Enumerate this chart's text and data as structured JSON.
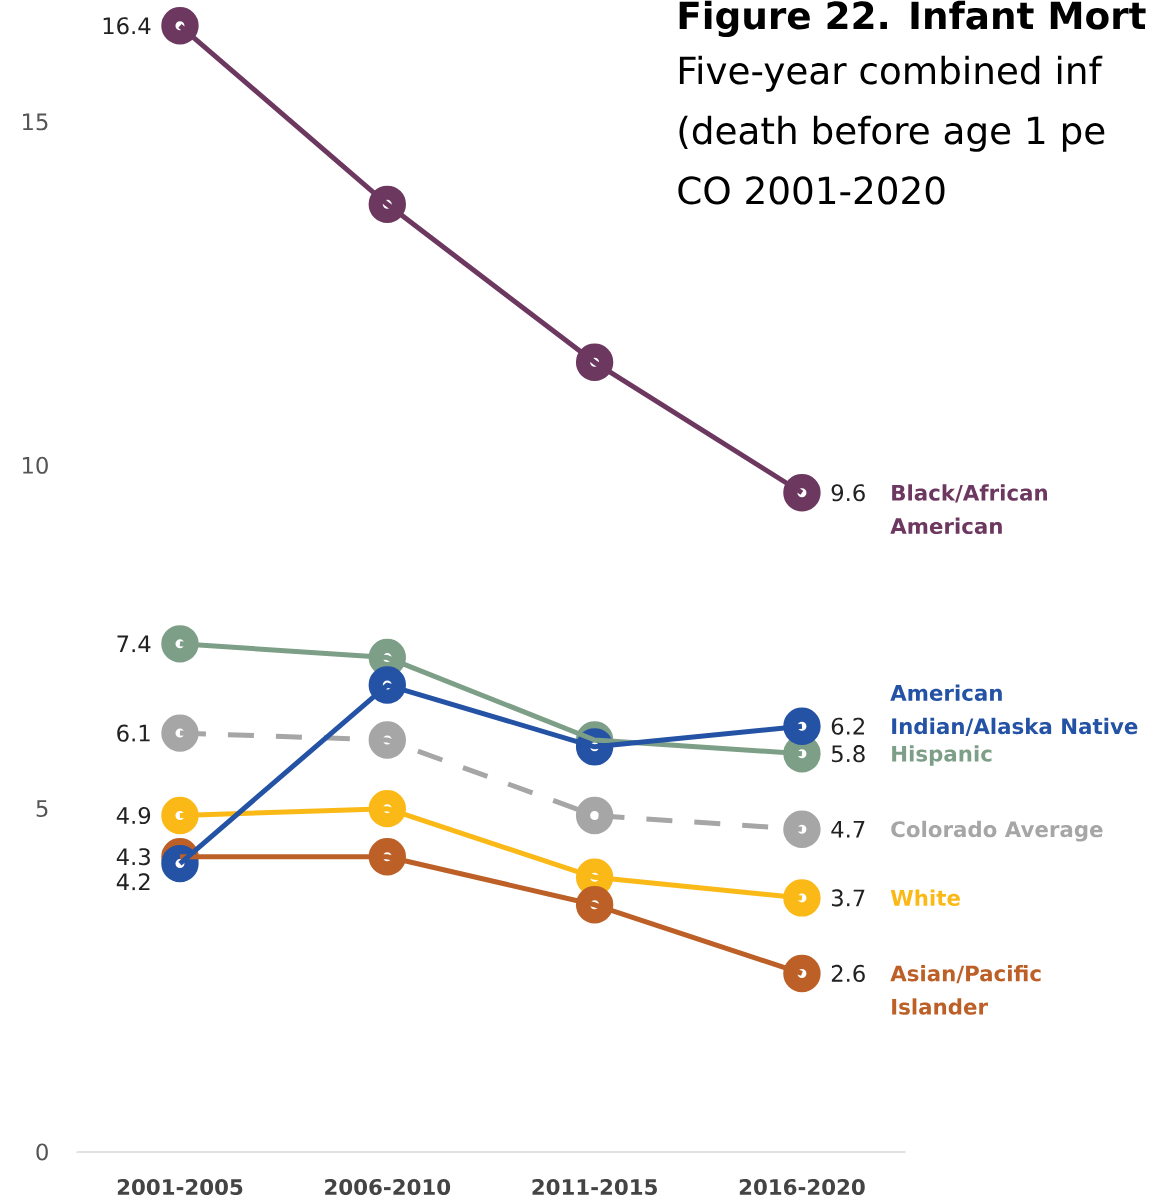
{
  "chart_data": {
    "type": "line",
    "title": "Figure 22. Infant Mort",
    "subtitle": "Five-year combined inf (death before age 1 pe CO 2001-2020",
    "categories": [
      "2001-2005",
      "2006-2010",
      "2011-2015",
      "2016-2020"
    ],
    "series": [
      {
        "name": "Black/African American",
        "color": "#6d3860",
        "values": [
          16.4,
          13.8,
          11.5,
          9.6
        ],
        "value_labels": [
          "16.4",
          null,
          null,
          "9.6"
        ]
      },
      {
        "name": "Hispanic",
        "color": "#7d9f87",
        "values": [
          7.4,
          7.2,
          6.0,
          5.8
        ],
        "value_labels": [
          "7.4",
          null,
          null,
          "5.8"
        ]
      },
      {
        "name": "Colorado Average",
        "color": "#a6a6a6",
        "line_style": "dashed",
        "values": [
          6.1,
          6.0,
          4.9,
          4.7
        ],
        "value_labels": [
          "6.1",
          null,
          null,
          "4.7"
        ]
      },
      {
        "name": "White",
        "color": "#fbb917",
        "values": [
          4.9,
          5.0,
          4.0,
          3.7
        ],
        "value_labels": [
          "4.9",
          null,
          null,
          "3.7"
        ]
      },
      {
        "name": "Asian/Pacific Islander",
        "color": "#bc6028",
        "values": [
          4.3,
          4.3,
          3.6,
          2.6
        ],
        "value_labels": [
          "4.3",
          null,
          null,
          "2.6"
        ]
      },
      {
        "name": "American Indian/Alaska Native",
        "color": "#2452a4",
        "values": [
          4.2,
          6.8,
          5.9,
          6.2
        ],
        "value_labels": [
          "4.2",
          null,
          null,
          "6.2"
        ]
      }
    ],
    "ylim": [
      0,
      16.7
    ],
    "yticks": [
      0,
      5,
      10,
      15
    ],
    "marker": "circle",
    "line_style": "solid"
  }
}
